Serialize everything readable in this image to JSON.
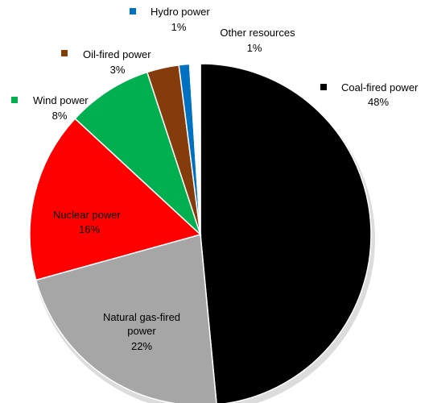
{
  "chart_data": {
    "type": "pie",
    "title": "",
    "slices": [
      {
        "label": "Coal-fired power",
        "value_label": "48%",
        "value": 48,
        "color": "#000000",
        "legend_color": "#000000"
      },
      {
        "label": "Natural gas-fired power",
        "value_label": "22%",
        "value": 22,
        "color": "#a6a6a6",
        "legend_color": "#a6a6a6"
      },
      {
        "label": "Nuclear power",
        "value_label": "16%",
        "value": 16,
        "color": "#ff0000",
        "legend_color": "#ff0000"
      },
      {
        "label": "Wind power",
        "value_label": "8%",
        "value": 8,
        "color": "#00b050",
        "legend_color": "#00b050"
      },
      {
        "label": "Oil-fired power",
        "value_label": "3%",
        "value": 3,
        "color": "#843c0c",
        "legend_color": "#843c0c"
      },
      {
        "label": "Hydro power",
        "value_label": "1%",
        "value": 1,
        "color": "#0070c0",
        "legend_color": "#0070c0"
      },
      {
        "label": "Other resources",
        "value_label": "1%",
        "value": 1,
        "color": "#ffffff",
        "legend_color": null
      }
    ]
  }
}
